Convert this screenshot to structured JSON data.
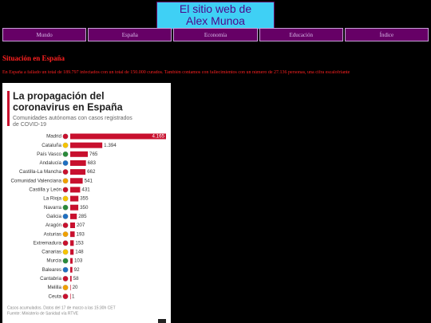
{
  "header": {
    "title_line1": "El sitio web de",
    "title_line2": "Alex Munoa"
  },
  "nav": [
    "Mundo",
    "España",
    "Economía",
    "Educación",
    "Índice"
  ],
  "section": {
    "heading": "Situación en España",
    "paragraph": "En España a fallado un total de 189.797 infectados con un total de 150.000 curados. También contamos con fallecimientos con un número de 27.136 personas, una cifra escalofriante"
  },
  "infographic": {
    "type": "bar",
    "title_line1": "La propagación del",
    "title_line2": "coronavirus en España",
    "subtitle_line1": "Comunidades autónomas con casos registrados",
    "subtitle_line2": "de COVID-19",
    "color": "#c8102e",
    "categories": [
      "Madrid",
      "Cataluña",
      "País Vasco",
      "Andalucía",
      "Castilla-La Mancha",
      "Comunidad Valenciana",
      "Castilla y León",
      "La Rioja",
      "Navarra",
      "Galicia",
      "Aragón",
      "Asturias",
      "Extremadura",
      "Canarias",
      "Murcia",
      "Baleares",
      "Cantabria",
      "Melilla",
      "Ceuta"
    ],
    "values": [
      4165,
      1394,
      765,
      683,
      662,
      541,
      431,
      355,
      350,
      285,
      207,
      193,
      153,
      148,
      103,
      92,
      58,
      20,
      1
    ],
    "value_labels": [
      "4.165",
      "1.394",
      "765",
      "683",
      "662",
      "541",
      "431",
      "355",
      "350",
      "285",
      "207",
      "193",
      "153",
      "148",
      "103",
      "92",
      "58",
      "20",
      "1"
    ],
    "footnote_line1": "Casos acumulados. Datos del 17 de marzo a las 15:30h CET",
    "footnote_line2": "Fuente: Ministerio de Sanidad vía RTVE"
  }
}
